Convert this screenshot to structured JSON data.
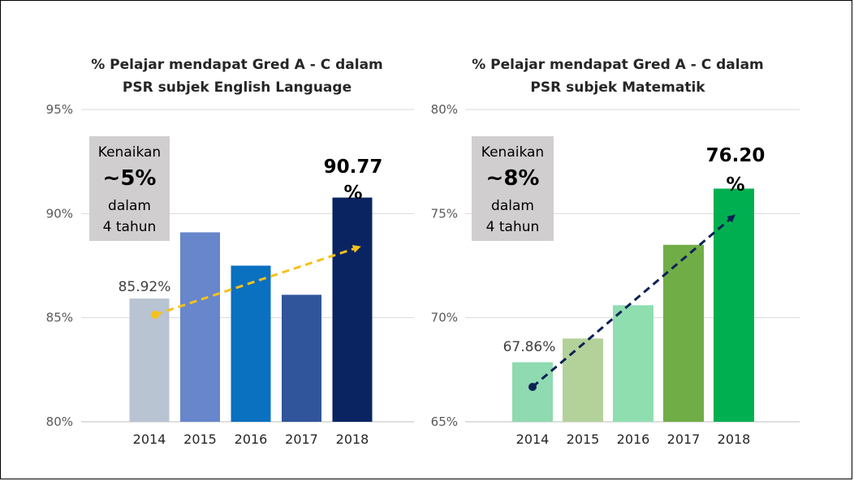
{
  "chart_data": [
    {
      "type": "bar",
      "title_line1": "% Pelajar mendapat Gred A - C dalam",
      "title_line2": "PSR subjek English Language",
      "categories": [
        "2014",
        "2015",
        "2016",
        "2017",
        "2018"
      ],
      "values": [
        85.92,
        89.1,
        87.5,
        86.1,
        90.77
      ],
      "bar_colors": [
        "#b8c4d2",
        "#6786cc",
        "#0a70c0",
        "#30559a",
        "#0a2462"
      ],
      "ylim": [
        80,
        95
      ],
      "yticks": [
        80,
        85,
        90,
        95
      ],
      "ytick_labels": [
        "80%",
        "85%",
        "90%",
        "95%"
      ],
      "first_label": "85.92%",
      "last_label_line1": "90.77",
      "last_label_line2": "%",
      "trend_color": "#f6c11a",
      "box": {
        "line1": "Kenaikan",
        "line2": "~5%",
        "line3": "dalam",
        "line4": "4 tahun"
      },
      "grid": true,
      "legend": "none"
    },
    {
      "type": "bar",
      "title_line1": "% Pelajar mendapat Gred A - C dalam",
      "title_line2": "PSR subjek Matematik",
      "categories": [
        "2014",
        "2015",
        "2016",
        "2017",
        "2018"
      ],
      "values": [
        67.86,
        69.0,
        70.6,
        73.5,
        76.2
      ],
      "bar_colors": [
        "#8fdab0",
        "#b3d29a",
        "#8fdeb0",
        "#71ad47",
        "#00b050"
      ],
      "ylim": [
        65,
        80
      ],
      "yticks": [
        65,
        70,
        75,
        80
      ],
      "ytick_labels": [
        "65%",
        "70%",
        "75%",
        "80%"
      ],
      "first_label": "67.86%",
      "last_label_line1": "76.20",
      "last_label_line2": "%",
      "trend_color": "#0d2156",
      "box": {
        "line1": "Kenaikan",
        "line2": "~8%",
        "line3": "dalam",
        "line4": "4 tahun"
      },
      "grid": true,
      "legend": "none"
    }
  ]
}
